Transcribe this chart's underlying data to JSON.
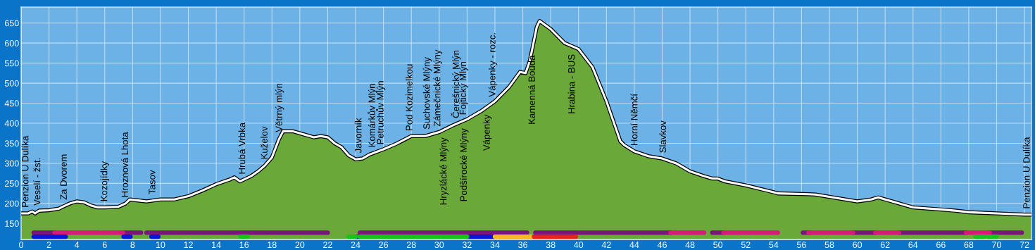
{
  "chart_data": {
    "type": "area",
    "x": [
      0,
      0.5,
      0.8,
      1,
      1.3,
      2,
      2.7,
      3,
      3.5,
      4,
      4.5,
      5,
      5.5,
      6,
      7,
      7.5,
      7.8,
      8.5,
      9,
      10,
      11,
      12,
      13,
      14,
      15,
      15.3,
      15.7,
      16.5,
      17,
      17.5,
      18,
      18.5,
      18.8,
      19.5,
      20,
      21,
      21.5,
      22,
      22.5,
      23,
      23.5,
      24,
      24.5,
      25,
      26,
      27,
      28,
      29,
      30,
      31,
      32,
      33,
      34,
      35,
      35.8,
      36.2,
      36.5,
      37,
      37.2,
      38,
      39,
      40,
      41,
      42,
      43,
      43.3,
      44,
      45,
      46,
      47,
      48,
      49,
      49.6,
      50,
      50.5,
      52,
      54,
      54.3,
      56.5,
      57,
      60,
      61,
      61.5,
      62,
      63,
      64,
      66,
      67,
      68,
      70,
      72,
      72.5
    ],
    "series": [
      {
        "color": "#6aa83a",
        "values": [
          175,
          175,
          180,
          175,
          182,
          183,
          187,
          192,
          200,
          205,
          203,
          195,
          190,
          190,
          192,
          200,
          210,
          207,
          205,
          210,
          210,
          218,
          232,
          248,
          260,
          265,
          255,
          268,
          280,
          295,
          315,
          360,
          380,
          380,
          375,
          365,
          368,
          365,
          350,
          340,
          320,
          310,
          312,
          322,
          335,
          350,
          368,
          368,
          378,
          395,
          410,
          430,
          455,
          490,
          528,
          525,
          555,
          640,
          655,
          635,
          600,
          585,
          540,
          455,
          355,
          345,
          330,
          318,
          312,
          300,
          280,
          268,
          262,
          262,
          255,
          245,
          228,
          225,
          223,
          222,
          205,
          210,
          215,
          210,
          200,
          190,
          185,
          182,
          178,
          175,
          172,
          172
        ]
      },
      {
        "type": "line",
        "color": "#7a167a",
        "x": [
          0.9,
          2.4,
          null,
          7.4,
          8.6,
          null,
          9.0,
          11.2,
          null,
          11.3,
          15.8,
          22.0,
          null,
          24.3,
          36.3,
          null,
          36.9,
          46.6,
          null,
          49.6,
          50.4,
          null,
          56.1,
          56.6,
          null,
          59.7,
          61.3,
          null,
          63.0,
          67.8,
          null,
          69.5,
          71.8
        ],
        "values": [
          127,
          127,
          null,
          127,
          127,
          null,
          127,
          127,
          null,
          127,
          127,
          127,
          null,
          127,
          127,
          null,
          127,
          127,
          null,
          127,
          127,
          null,
          127,
          127,
          null,
          127,
          127,
          null,
          127,
          127,
          null,
          127,
          127
        ]
      },
      {
        "type": "line",
        "color": "#d6197a",
        "x": [
          2.4,
          5.6,
          null,
          5.8,
          7.3,
          null,
          46.6,
          49.0,
          null,
          50.4,
          54.3,
          null,
          56.5,
          59.7,
          null,
          61.3,
          63.0,
          null,
          67.8,
          69.5
        ],
        "values": [
          127,
          127,
          null,
          127,
          127,
          null,
          127,
          127,
          null,
          127,
          127,
          null,
          127,
          127,
          null,
          127,
          127,
          null,
          127,
          127
        ]
      },
      {
        "type": "line",
        "color": "#0a14d8",
        "x": [
          0.9,
          3.2,
          null,
          7.35,
          7.85,
          null,
          9.35,
          9.85,
          null,
          24.0,
          24.3,
          null,
          32.0,
          34.0
        ],
        "values": [
          117,
          117,
          null,
          117,
          117,
          null,
          117,
          117,
          null,
          117,
          117,
          null,
          117,
          117
        ]
      },
      {
        "type": "line",
        "color": "#19c219",
        "x": [
          15.75,
          16.25,
          null,
          23.5,
          24.0,
          null,
          24.3,
          32.0,
          null,
          68.5,
          69.1,
          null,
          69.4,
          70.0
        ],
        "values": [
          117,
          117,
          null,
          117,
          117,
          null,
          117,
          117,
          null,
          117,
          117,
          null,
          117,
          117
        ]
      },
      {
        "type": "line",
        "color": "#f5b922",
        "x": [
          34.0,
          36.8
        ],
        "values": [
          117,
          117
        ]
      },
      {
        "type": "line",
        "color": "#e8231e",
        "x": [
          36.8,
          39.8
        ],
        "values": [
          117,
          117
        ]
      }
    ],
    "annotations": [
      {
        "text": "Penzion U Dulíka",
        "x": 0.35,
        "y": 175
      },
      {
        "text": "Veselí - žst.",
        "x": 1.2,
        "y": 180
      },
      {
        "text": "Za Dvorem",
        "x": 3.1,
        "y": 194
      },
      {
        "text": "Kozojídky",
        "x": 6.0,
        "y": 190
      },
      {
        "text": "Hroznová Lhota",
        "x": 7.5,
        "y": 200
      },
      {
        "text": "Tasov",
        "x": 9.45,
        "y": 208
      },
      {
        "text": "Hrubá Vrbka",
        "x": 15.9,
        "y": 258
      },
      {
        "text": "Kuželov",
        "x": 17.5,
        "y": 295
      },
      {
        "text": "Větrný mlýn",
        "x": 18.55,
        "y": 363
      },
      {
        "text": "Javorník",
        "x": 24.25,
        "y": 311
      },
      {
        "text": "Komárkův Mlýn",
        "x": 25.2,
        "y": 325
      },
      {
        "text": "Petruchův Mlýn",
        "x": 25.8,
        "y": 332
      },
      {
        "text": "Pod Kozimelkou",
        "x": 27.9,
        "y": 366
      },
      {
        "text": "Suchovské Mlýny",
        "x": 29.15,
        "y": 370
      },
      {
        "text": "Zámečnické Mlýny",
        "x": 29.9,
        "y": 377
      },
      {
        "text": "Hryzlácké Mlýny",
        "x": 30.35,
        "y": 384
      },
      {
        "text": "Čerešnický Mlýn",
        "x": 31.2,
        "y": 398
      },
      {
        "text": "Fojtický Mlýn",
        "x": 31.75,
        "y": 406
      },
      {
        "text": "Podšírocké Mlýny",
        "x": 31.8,
        "y": 407
      },
      {
        "text": "Vápenky - rozc.",
        "x": 33.85,
        "y": 451
      },
      {
        "text": "Vápenky",
        "x": 33.45,
        "y": 441
      },
      {
        "text": "Kamenná Bouda",
        "x": 36.7,
        "y": 589
      },
      {
        "text": "Hrabina - BUS",
        "x": 39.55,
        "y": 592
      },
      {
        "text": "Horní Němčí",
        "x": 44.05,
        "y": 329
      },
      {
        "text": "Slavkov",
        "x": 46.1,
        "y": 311
      },
      {
        "text": "Penzion U Dulíka",
        "x": 72.2,
        "y": 172
      }
    ],
    "xlim": [
      0,
      72.5
    ],
    "ylim": [
      110,
      690
    ],
    "xticks": [
      0,
      2,
      4,
      6,
      8,
      10,
      12,
      14,
      16,
      18,
      20,
      22,
      24,
      26,
      28,
      30,
      32,
      34,
      36,
      38,
      40,
      42,
      44,
      46,
      48,
      50,
      52,
      54,
      56,
      58,
      60,
      62,
      64,
      66,
      68,
      70,
      72
    ],
    "yticks": [
      150,
      200,
      250,
      300,
      350,
      400,
      450,
      500,
      550,
      600,
      650
    ],
    "grid": true,
    "legend": false
  }
}
